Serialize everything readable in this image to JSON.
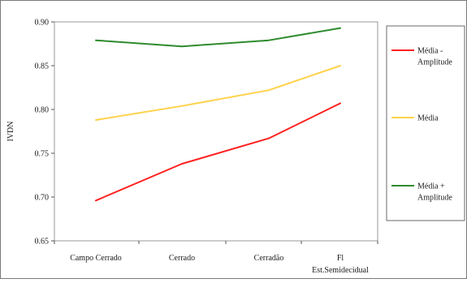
{
  "chart_data": {
    "type": "line",
    "title": "",
    "xlabel": "",
    "ylabel": "IVDN",
    "categories": [
      "Campo Cerrado",
      "Cerrado",
      "Cerradão",
      "Fl Est.Semidecidual"
    ],
    "category_lines": [
      [
        "Campo Cerrado"
      ],
      [
        "Cerrado"
      ],
      [
        "Cerradão"
      ],
      [
        "Fl",
        "Est.Semidecidual"
      ]
    ],
    "ylim": [
      0.65,
      0.9
    ],
    "yticks": [
      0.65,
      0.7,
      0.75,
      0.8,
      0.85,
      0.9
    ],
    "ytick_labels": [
      "0.65",
      "0.70",
      "0.75",
      "0.80",
      "0.85",
      "0.90"
    ],
    "grid": false,
    "legend_position": "right",
    "series": [
      {
        "name": "Média - Amplitude",
        "name_lines": [
          "Média -",
          "Amplitude"
        ],
        "color": "#ff2020",
        "values": [
          0.696,
          0.738,
          0.767,
          0.807
        ]
      },
      {
        "name": "Média",
        "name_lines": [
          "Média"
        ],
        "color": "#ffd24a",
        "values": [
          0.788,
          0.804,
          0.822,
          0.85
        ]
      },
      {
        "name": "Média + Amplitude",
        "name_lines": [
          "Média +",
          "Amplitude"
        ],
        "color": "#2e8b2e",
        "values": [
          0.879,
          0.872,
          0.879,
          0.893
        ]
      }
    ]
  }
}
